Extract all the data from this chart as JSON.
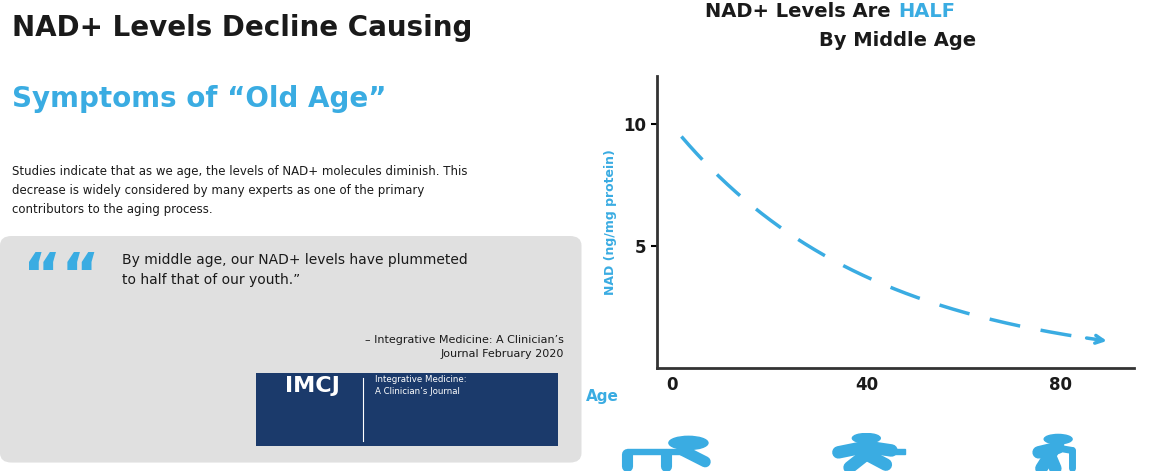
{
  "title_black": "NAD+ Levels Are ",
  "title_blue": "HALF",
  "title_line2": "By Middle Age",
  "ylabel": "NAD (ng/mg protein)",
  "xlabel_label": "Age",
  "xtick_labels": [
    "0",
    "40",
    "80"
  ],
  "ytick_labels": [
    "5",
    "10"
  ],
  "curve_color": "#3aace2",
  "curve_x_start": 2,
  "curve_x_end": 90,
  "curve_y_start": 9.5,
  "curve_y_end": 1.1,
  "left_title_black": "NAD+ Levels Decline Causing",
  "left_title_blue": "Symptoms of “Old Age”",
  "body_text": "Studies indicate that as we age, the levels of NAD+ molecules diminish. This\ndecrease is widely considered by many experts as one of the primary\ncontributors to the aging process.",
  "quote_text": "By middle age, our NAD+ levels have plummeted\nto half that of our youth.”",
  "citation_text": "– Integrative Medicine: A Clinician’s\nJournal February 2020",
  "imcj_box_color": "#1b3a6b",
  "imcj_text": "IMCJ",
  "imcj_subtext": "Integrative Medicine:\nA Clinician’s Journal",
  "quote_box_color": "#e0e0e0",
  "blue_color": "#3aace2",
  "dark_blue_color": "#1b3a6b",
  "dark_text_color": "#1a1a1a",
  "background_color": "#ffffff",
  "ylim": [
    0,
    12
  ],
  "xlim": [
    -3,
    95
  ]
}
